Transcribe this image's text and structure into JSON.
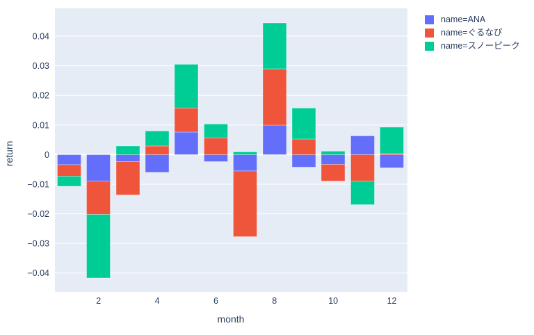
{
  "colors": {
    "page_bg": "#FFFFFF",
    "plot_bg": "#E5ECF6",
    "grid": "#FFFFFF",
    "axis_text": "#2A3F5F"
  },
  "chart_data": {
    "type": "bar",
    "barmode": "relative",
    "title": "",
    "xlabel": "month",
    "ylabel": "return",
    "grid": true,
    "legend_position": "top-right",
    "x": [
      1,
      2,
      3,
      4,
      5,
      6,
      7,
      8,
      9,
      10,
      11,
      12
    ],
    "xtick_values": [
      2,
      4,
      6,
      8,
      10,
      12
    ],
    "xtick_labels": [
      "2",
      "4",
      "6",
      "8",
      "10",
      "12"
    ],
    "ytick_values": [
      -0.04,
      -0.03,
      -0.02,
      -0.01,
      0,
      0.01,
      0.02,
      0.03,
      0.04
    ],
    "ytick_labels": [
      "−0.04",
      "−0.03",
      "−0.02",
      "−0.01",
      "0",
      "0.01",
      "0.02",
      "0.03",
      "0.04"
    ],
    "ylim": [
      -0.0464,
      0.0494
    ],
    "xlim": [
      0.514,
      12.533
    ],
    "series": [
      {
        "name": "name=ANA",
        "key": "ana",
        "color": "#636EFA",
        "values": [
          -0.0034,
          -0.009,
          -0.0024,
          -0.006,
          0.0076,
          -0.0024,
          -0.0056,
          0.01,
          -0.0042,
          -0.0033,
          0.0063,
          -0.0045
        ]
      },
      {
        "name": "name=ぐるなび",
        "key": "gurunavi",
        "color": "#EF553B",
        "values": [
          -0.0039,
          -0.0112,
          -0.0112,
          0.0029,
          0.0081,
          0.0056,
          -0.0221,
          0.019,
          0.0053,
          -0.0057,
          -0.0089,
          0.0005
        ]
      },
      {
        "name": "name=スノーピーク",
        "key": "snowpeak",
        "color": "#00CC96",
        "values": [
          -0.0034,
          -0.0215,
          0.0029,
          0.0051,
          0.0148,
          0.0047,
          0.0009,
          0.0155,
          0.0104,
          0.0011,
          -0.008,
          0.0087
        ]
      }
    ]
  }
}
